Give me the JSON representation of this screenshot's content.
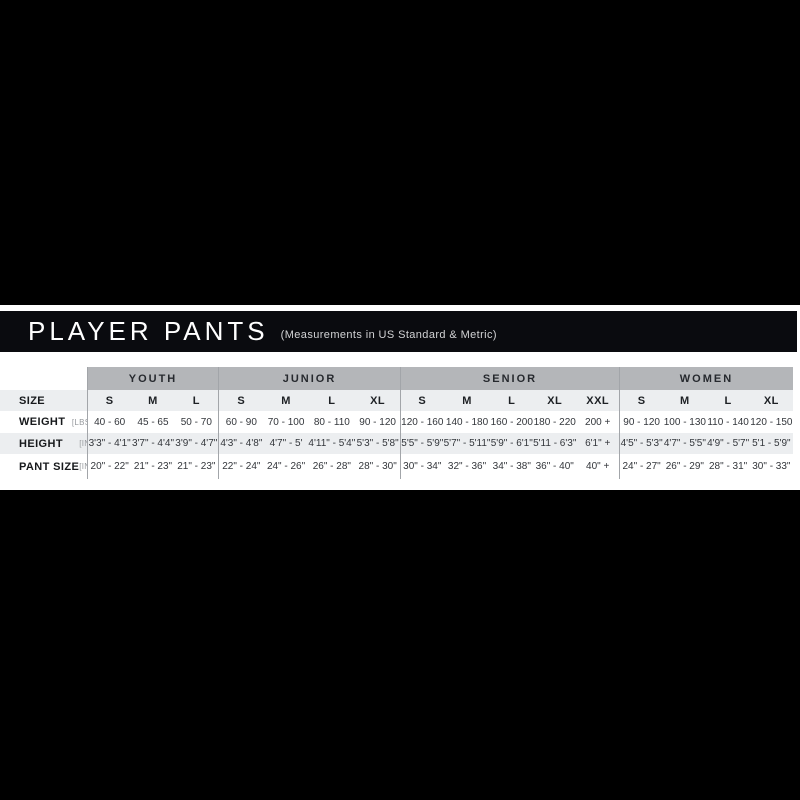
{
  "header": {
    "title": "PLAYER PANTS",
    "subtitle": "(Measurements in US Standard & Metric)"
  },
  "colors": {
    "title_bar_bg": "#0a0b0f",
    "group_header_bg": "#b4b6b9",
    "row_alt_bg": "#eceef0",
    "top_bottom_band": "#000000",
    "divider": "#a2a5a9"
  },
  "table": {
    "row_headers": [
      {
        "label": "SIZE",
        "unit": ""
      },
      {
        "label": "WEIGHT",
        "unit": "[LBS]"
      },
      {
        "label": "HEIGHT",
        "unit": "[IN]"
      },
      {
        "label": "PANT SIZE",
        "unit": "[IN]"
      }
    ],
    "groups": [
      {
        "name": "YOUTH",
        "sizes": [
          "S",
          "M",
          "L"
        ],
        "weight_lbs": [
          "40 - 60",
          "45 - 65",
          "50 - 70"
        ],
        "height_in": [
          "3'3\" - 4'1\"",
          "3'7\" - 4'4\"",
          "3'9\" - 4'7\""
        ],
        "pant_size_in": [
          "20\" - 22\"",
          "21\" - 23\"",
          "21\" - 23\""
        ]
      },
      {
        "name": "JUNIOR",
        "sizes": [
          "S",
          "M",
          "L",
          "XL"
        ],
        "weight_lbs": [
          "60 - 90",
          "70 - 100",
          "80 - 110",
          "90 - 120"
        ],
        "height_in": [
          "4'3\" - 4'8\"",
          "4'7\" - 5'",
          "4'11\" - 5'4\"",
          "5'3\" - 5'8\""
        ],
        "pant_size_in": [
          "22\" - 24\"",
          "24\" - 26\"",
          "26\" - 28\"",
          "28\" - 30\""
        ]
      },
      {
        "name": "SENIOR",
        "sizes": [
          "S",
          "M",
          "L",
          "XL",
          "XXL"
        ],
        "weight_lbs": [
          "120 - 160",
          "140 - 180",
          "160 - 200",
          "180 - 220",
          "200 +"
        ],
        "height_in": [
          "5'5\" - 5'9\"",
          "5'7\" - 5'11\"",
          "5'9\" - 6'1\"",
          "5'11 - 6'3\"",
          "6'1\" +"
        ],
        "pant_size_in": [
          "30\" - 34\"",
          "32\" - 36\"",
          "34\" - 38\"",
          "36\" - 40\"",
          "40\" +"
        ]
      },
      {
        "name": "WOMEN",
        "sizes": [
          "S",
          "M",
          "L",
          "XL"
        ],
        "weight_lbs": [
          "90 - 120",
          "100 - 130",
          "110 - 140",
          "120 - 150"
        ],
        "height_in": [
          "4'5\" - 5'3\"",
          "4'7\" - 5'5\"",
          "4'9\" - 5'7\"",
          "5'1 - 5'9\""
        ],
        "pant_size_in": [
          "24\" - 27\"",
          "26\" - 29\"",
          "28\" - 31\"",
          "30\" - 33\""
        ]
      }
    ]
  }
}
